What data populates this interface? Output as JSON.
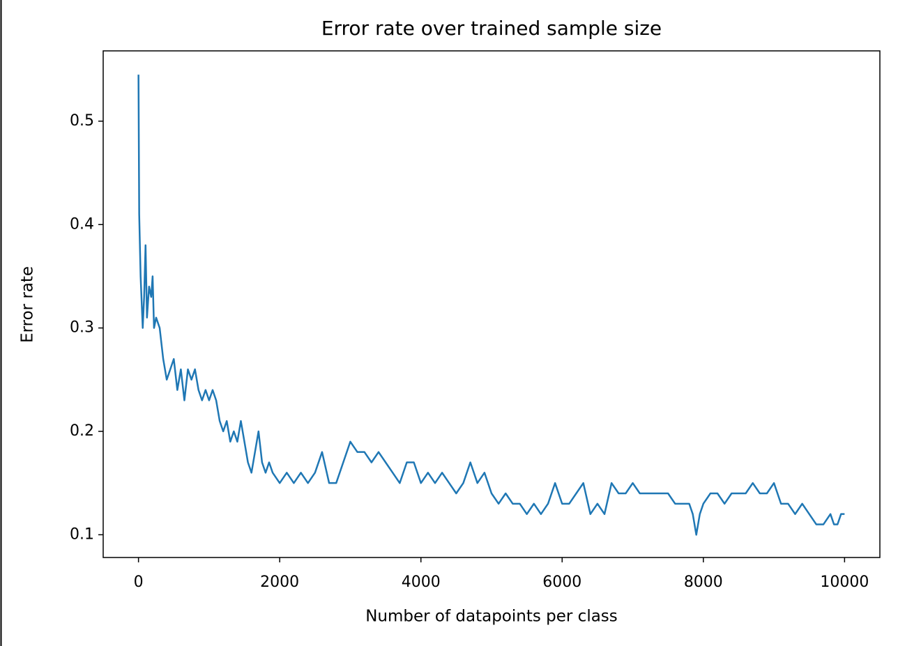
{
  "chart_data": {
    "type": "line",
    "title": "Error rate over trained sample size",
    "x_label": "Number of datapoints per class",
    "y_label": "Error rate",
    "xlim": [
      -500,
      10500
    ],
    "ylim": [
      0.078,
      0.568
    ],
    "xticks": [
      0,
      2000,
      4000,
      6000,
      8000,
      10000
    ],
    "yticks": [
      0.1,
      0.2,
      0.3,
      0.4,
      0.5
    ],
    "x": [
      0,
      10,
      30,
      60,
      80,
      100,
      120,
      150,
      180,
      200,
      220,
      250,
      300,
      350,
      400,
      450,
      500,
      550,
      600,
      650,
      700,
      750,
      800,
      850,
      900,
      950,
      1000,
      1050,
      1100,
      1150,
      1200,
      1250,
      1300,
      1350,
      1400,
      1450,
      1500,
      1550,
      1600,
      1650,
      1700,
      1750,
      1800,
      1850,
      1900,
      2000,
      2100,
      2200,
      2300,
      2400,
      2500,
      2600,
      2700,
      2800,
      2900,
      3000,
      3100,
      3200,
      3300,
      3400,
      3500,
      3600,
      3700,
      3800,
      3900,
      4000,
      4100,
      4200,
      4300,
      4400,
      4500,
      4600,
      4700,
      4800,
      4900,
      5000,
      5100,
      5200,
      5300,
      5400,
      5500,
      5600,
      5700,
      5800,
      5900,
      6000,
      6100,
      6200,
      6300,
      6400,
      6500,
      6600,
      6700,
      6800,
      6900,
      7000,
      7100,
      7200,
      7300,
      7400,
      7500,
      7600,
      7700,
      7800,
      7850,
      7900,
      7950,
      8000,
      8100,
      8200,
      8300,
      8400,
      8500,
      8600,
      8700,
      8800,
      8900,
      9000,
      9100,
      9200,
      9300,
      9400,
      9500,
      9600,
      9700,
      9800,
      9850,
      9900,
      9950,
      10000
    ],
    "series": [
      {
        "color": "#1f77b4",
        "values": [
          0.545,
          0.41,
          0.35,
          0.3,
          0.33,
          0.38,
          0.31,
          0.34,
          0.33,
          0.35,
          0.3,
          0.31,
          0.3,
          0.27,
          0.25,
          0.26,
          0.27,
          0.24,
          0.26,
          0.23,
          0.26,
          0.25,
          0.26,
          0.24,
          0.23,
          0.24,
          0.23,
          0.24,
          0.23,
          0.21,
          0.2,
          0.21,
          0.19,
          0.2,
          0.19,
          0.21,
          0.19,
          0.17,
          0.16,
          0.18,
          0.2,
          0.17,
          0.16,
          0.17,
          0.16,
          0.15,
          0.16,
          0.15,
          0.16,
          0.15,
          0.16,
          0.18,
          0.15,
          0.15,
          0.17,
          0.19,
          0.18,
          0.18,
          0.17,
          0.18,
          0.17,
          0.16,
          0.15,
          0.17,
          0.17,
          0.15,
          0.16,
          0.15,
          0.16,
          0.15,
          0.14,
          0.15,
          0.17,
          0.15,
          0.16,
          0.14,
          0.13,
          0.14,
          0.13,
          0.13,
          0.12,
          0.13,
          0.12,
          0.13,
          0.15,
          0.13,
          0.13,
          0.14,
          0.15,
          0.12,
          0.13,
          0.12,
          0.15,
          0.14,
          0.14,
          0.15,
          0.14,
          0.14,
          0.14,
          0.14,
          0.14,
          0.13,
          0.13,
          0.13,
          0.12,
          0.1,
          0.12,
          0.13,
          0.14,
          0.14,
          0.13,
          0.14,
          0.14,
          0.14,
          0.15,
          0.14,
          0.14,
          0.15,
          0.13,
          0.13,
          0.12,
          0.13,
          0.12,
          0.11,
          0.11,
          0.12,
          0.11,
          0.11,
          0.12,
          0.12
        ]
      }
    ]
  }
}
